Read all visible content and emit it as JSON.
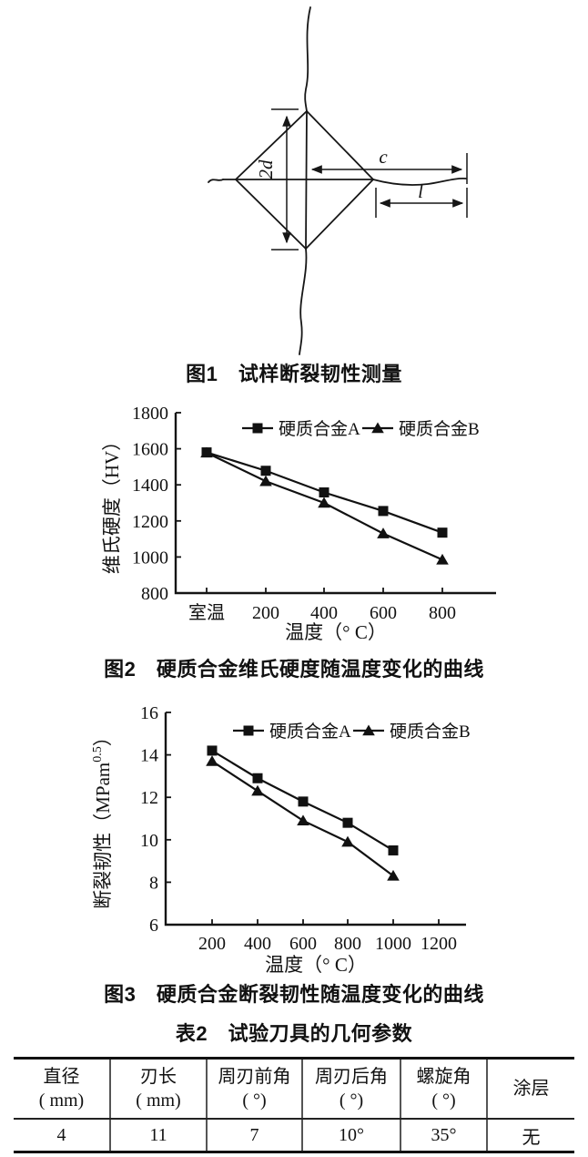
{
  "page": {
    "background": "#ffffff",
    "ink": "#111111"
  },
  "figure1": {
    "caption": "图1　试样断裂韧性测量",
    "labels": {
      "indent_diagonal": "2d",
      "crack_center_length": "c",
      "crack_tip_length": "l"
    }
  },
  "figure2": {
    "caption": "图2　硬质合金维氏硬度随温度变化的曲线"
  },
  "figure3": {
    "caption": "图3　硬质合金断裂韧性随温度变化的曲线"
  },
  "table2": {
    "caption": "表2　试验刀具的几何参数",
    "headers": [
      {
        "line1": "直径",
        "line2": "( mm)"
      },
      {
        "line1": "刃长",
        "line2": "( mm)"
      },
      {
        "line1": "周刃前角",
        "line2": "( °)"
      },
      {
        "line1": "周刃后角",
        "line2": "( °)"
      },
      {
        "line1": "螺旋角",
        "line2": "( °)"
      },
      {
        "line1": "涂层",
        "line2": ""
      }
    ],
    "rows": [
      [
        "4",
        "11",
        "7",
        "10°",
        "35°",
        "无"
      ]
    ]
  },
  "chart_data": [
    {
      "id": "fig2",
      "type": "line",
      "title": "",
      "categories": [
        "室温",
        "200",
        "400",
        "600",
        "800"
      ],
      "series": [
        {
          "name": "硬质合金A",
          "marker": "square",
          "values": [
            1580,
            1478,
            1358,
            1255,
            1135
          ]
        },
        {
          "name": "硬质合金B",
          "marker": "triangle",
          "values": [
            1578,
            1420,
            1300,
            1130,
            985
          ]
        }
      ],
      "xlabel": "温度（° C）",
      "ylabel": "维氏硬度（HV）",
      "ylim": [
        800,
        1800
      ],
      "yticks": [
        800,
        1000,
        1200,
        1400,
        1600,
        1800
      ],
      "grid": false,
      "legend_position": "top"
    },
    {
      "id": "fig3",
      "type": "line",
      "title": "",
      "x": [
        200,
        400,
        600,
        800,
        1000
      ],
      "xticks": [
        200,
        400,
        600,
        800,
        1000,
        1200
      ],
      "series": [
        {
          "name": "硬质合金A",
          "marker": "square",
          "values": [
            14.2,
            12.9,
            11.8,
            10.8,
            9.5
          ]
        },
        {
          "name": "硬质合金B",
          "marker": "triangle",
          "values": [
            13.7,
            12.3,
            10.9,
            9.9,
            8.3
          ]
        }
      ],
      "xlabel": "温度（° C）",
      "ylabel_main": "断裂韧性（MPam",
      "ylabel_sup": "0.5",
      "ylabel_close": "）",
      "ylim": [
        6,
        16
      ],
      "yticks": [
        6,
        8,
        10,
        12,
        14,
        16
      ],
      "grid": false,
      "legend_position": "top"
    }
  ]
}
